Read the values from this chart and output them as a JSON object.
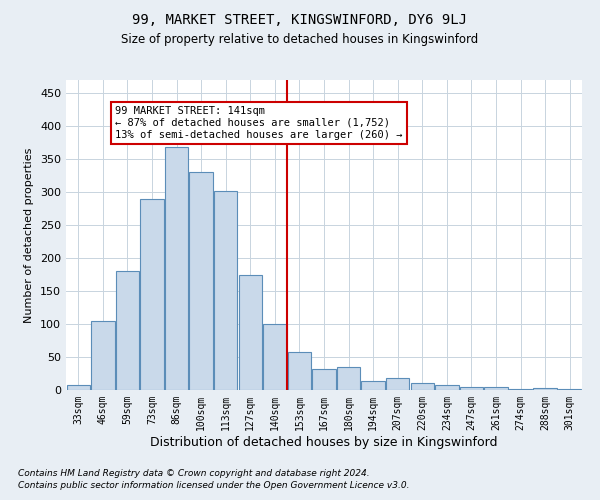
{
  "title": "99, MARKET STREET, KINGSWINFORD, DY6 9LJ",
  "subtitle": "Size of property relative to detached houses in Kingswinford",
  "xlabel": "Distribution of detached houses by size in Kingswinford",
  "ylabel": "Number of detached properties",
  "footnote1": "Contains HM Land Registry data © Crown copyright and database right 2024.",
  "footnote2": "Contains public sector information licensed under the Open Government Licence v3.0.",
  "categories": [
    "33sqm",
    "46sqm",
    "59sqm",
    "73sqm",
    "86sqm",
    "100sqm",
    "113sqm",
    "127sqm",
    "140sqm",
    "153sqm",
    "167sqm",
    "180sqm",
    "194sqm",
    "207sqm",
    "220sqm",
    "234sqm",
    "247sqm",
    "261sqm",
    "274sqm",
    "288sqm",
    "301sqm"
  ],
  "values": [
    8,
    105,
    180,
    289,
    368,
    330,
    301,
    175,
    100,
    58,
    32,
    35,
    13,
    18,
    10,
    7,
    5,
    5,
    1,
    3,
    1
  ],
  "bar_color": "#c9d9ea",
  "bar_edge_color": "#5b8db8",
  "vline_x": 8.5,
  "vline_color": "#cc0000",
  "annotation_title": "99 MARKET STREET: 141sqm",
  "annotation_line1": "← 87% of detached houses are smaller (1,752)",
  "annotation_line2": "13% of semi-detached houses are larger (260) →",
  "annotation_box_color": "#cc0000",
  "ylim": [
    0,
    470
  ],
  "yticks": [
    0,
    50,
    100,
    150,
    200,
    250,
    300,
    350,
    400,
    450
  ],
  "bg_color": "#e8eef4",
  "plot_bg_color": "#ffffff",
  "grid_color": "#c8d4de"
}
